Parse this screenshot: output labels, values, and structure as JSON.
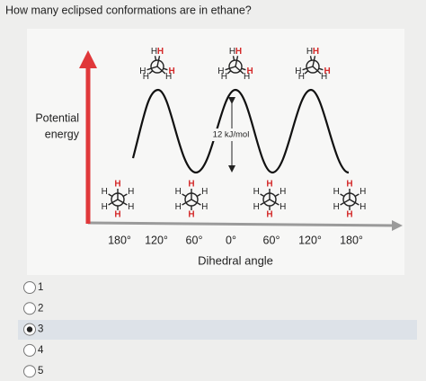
{
  "question": "How many eclipsed conformations are in ethane?",
  "diagram": {
    "y_label": [
      "Potential",
      "energy"
    ],
    "x_label": "Dihedral angle",
    "barrier_label": "12 kJ/mol",
    "x_ticks": [
      "180°",
      "120°",
      "60°",
      "0°",
      "60°",
      "120°",
      "180°"
    ],
    "eclipsed": [
      {
        "labels": [
          "H",
          "H",
          "H",
          "H",
          "H",
          "H"
        ]
      },
      {
        "labels": [
          "H",
          "H",
          "H",
          "H",
          "H",
          "H"
        ]
      },
      {
        "labels": [
          "H",
          "H",
          "H",
          "H",
          "H",
          "H"
        ]
      }
    ],
    "staggered": [
      {
        "labels": [
          "H",
          "H",
          "H",
          "H",
          "H",
          "H"
        ]
      },
      {
        "labels": [
          "H",
          "H",
          "H",
          "H",
          "H",
          "H"
        ]
      },
      {
        "labels": [
          "H",
          "H",
          "H",
          "H",
          "H",
          "H"
        ]
      },
      {
        "labels": [
          "H",
          "H",
          "H",
          "H",
          "H",
          "H"
        ]
      }
    ]
  },
  "options": [
    {
      "label": "1",
      "selected": false
    },
    {
      "label": "2",
      "selected": false
    },
    {
      "label": "3",
      "selected": true
    },
    {
      "label": "4",
      "selected": false
    },
    {
      "label": "5",
      "selected": false
    }
  ]
}
